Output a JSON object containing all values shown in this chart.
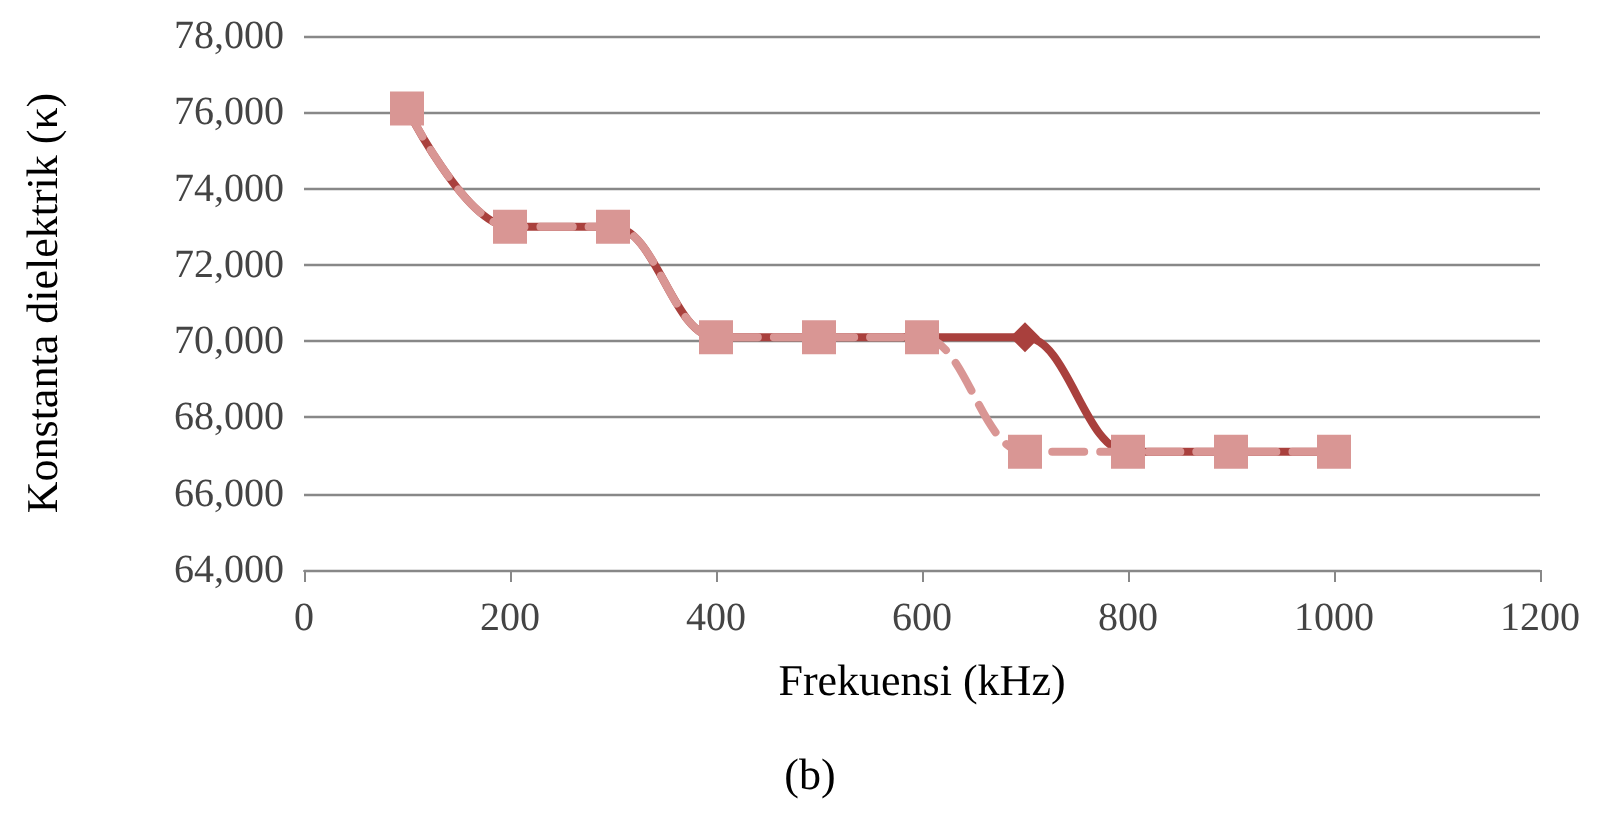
{
  "chart_data": {
    "type": "line",
    "xlabel": "Frekuensi (kHz)",
    "ylabel": "Konstanta dielektrik (κ)",
    "annotations": [
      "(b)"
    ],
    "x": [
      100,
      200,
      300,
      400,
      500,
      600,
      700,
      800,
      900,
      1000
    ],
    "series": [
      {
        "color": "#a9403d",
        "marker": "diamond",
        "line_style": "solid",
        "values": [
          76100,
          73000,
          73000,
          70100,
          70100,
          70100,
          70100,
          67100,
          67100,
          67100
        ]
      },
      {
        "color": "#d99694",
        "marker": "square",
        "line_style": "dashed",
        "values": [
          76100,
          73000,
          73000,
          70100,
          70100,
          70100,
          67100,
          67100,
          67100,
          67100
        ]
      }
    ],
    "xlim": [
      0,
      1200
    ],
    "xticks": [
      0,
      200,
      400,
      600,
      800,
      1000,
      1200
    ],
    "ylim": [
      64000,
      78000
    ],
    "yticks": [
      {
        "value": 64000,
        "label": "64,000"
      },
      {
        "value": 66000,
        "label": "66,000"
      },
      {
        "value": 68000,
        "label": "68,000"
      },
      {
        "value": 70000,
        "label": "70,000"
      },
      {
        "value": 72000,
        "label": "72,000"
      },
      {
        "value": 74000,
        "label": "74,000"
      },
      {
        "value": 76000,
        "label": "76,000"
      },
      {
        "value": 78000,
        "label": "78,000"
      }
    ],
    "grid": "y"
  }
}
